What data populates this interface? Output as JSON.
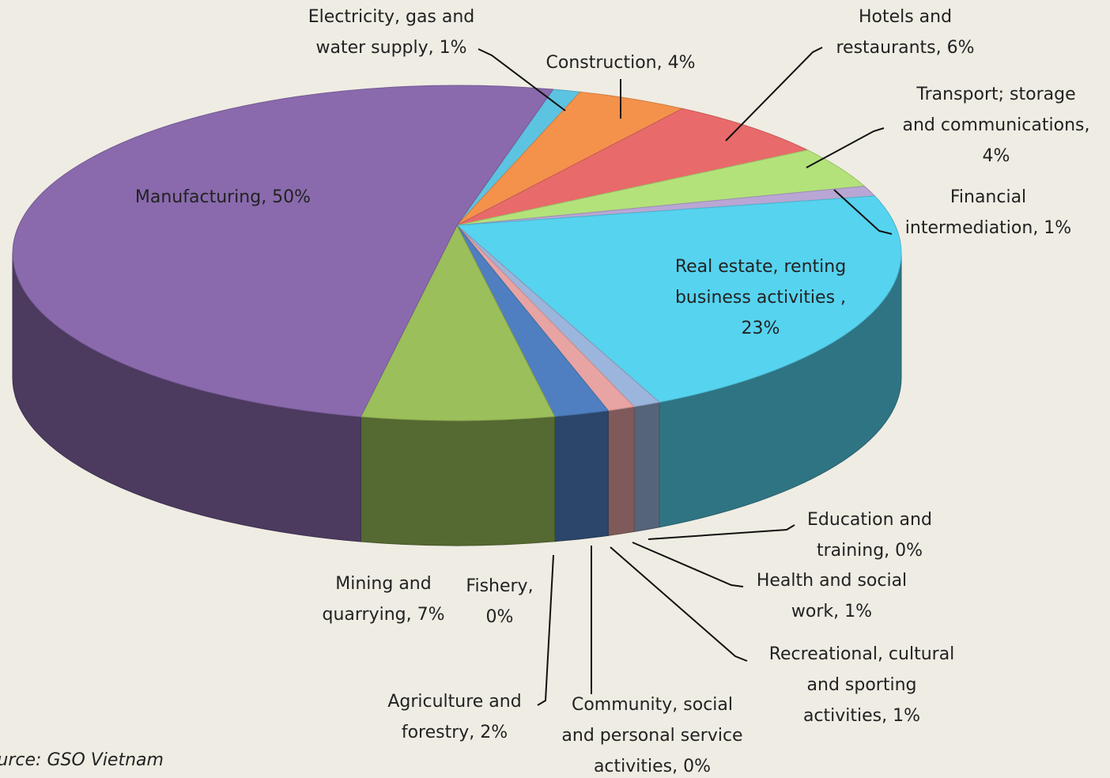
{
  "chart_data": {
    "type": "pie",
    "values": [
      1,
      4,
      6,
      4,
      1,
      23,
      0,
      1,
      1,
      0,
      2,
      0,
      7,
      50
    ],
    "value_labels": [
      "Electricity, gas and water supply, 1%",
      "Construction, 4%",
      "Hotels and restaurants, 6%",
      "Transport; storage and communications, 4%",
      "Financial intermediation, 1%",
      "Real estate, renting business activities , 23%",
      "Education and training, 0%",
      "Health and social work, 1%",
      "Recreational, cultural and sporting activities, 1%",
      "Community, social and personal service activities, 0%",
      "Agriculture and forestry, 2%",
      "Fishery, 0%",
      "Mining and quarrying, 7%",
      "Manufacturing, 50%"
    ],
    "colors": [
      "#5cc3e0",
      "#f4924c",
      "#e96a6a",
      "#b3e27a",
      "#b9a6d4",
      "#56d3ef",
      "#f0902c",
      "#9bb5dc",
      "#e8a3a3",
      "#8fa0c0",
      "#4f7fc0",
      "#c84a46",
      "#9bbf5a",
      "#8a6aad"
    ],
    "source": "Source: GSO Vietnam"
  }
}
